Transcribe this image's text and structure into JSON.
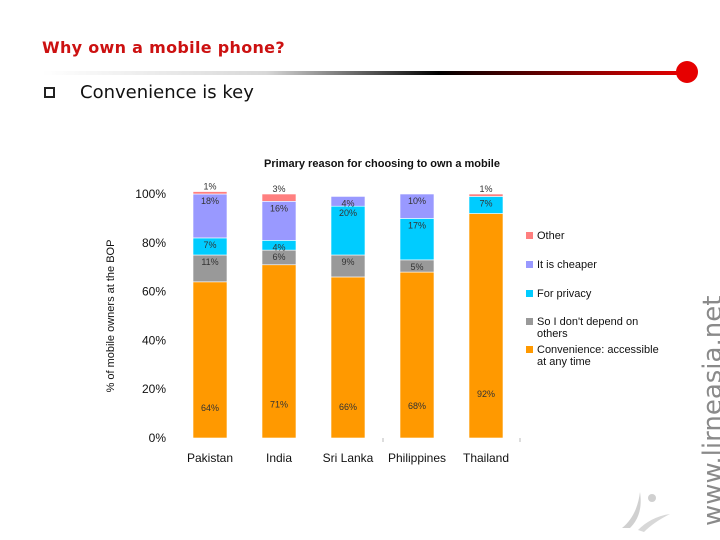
{
  "slide": {
    "title": "Why own a mobile phone?",
    "bullet": "Convenience is key",
    "watermark": "www.lirneasia.net"
  },
  "chart_data": {
    "type": "bar",
    "stacked": true,
    "title": "Primary reason for choosing to own a mobile",
    "ylabel": "% of mobile owners at the BOP",
    "xlabel": "",
    "ylim": [
      0,
      100
    ],
    "yticks": [
      "0%",
      "20%",
      "40%",
      "60%",
      "80%",
      "100%"
    ],
    "categories": [
      "Pakistan",
      "India",
      "Sri Lanka",
      "Philippines",
      "Thailand"
    ],
    "series": [
      {
        "name": "Convenience: accessible at any time",
        "color": "#ff9900",
        "values": [
          64,
          71,
          66,
          68,
          92
        ],
        "labels": [
          "64%",
          "71%",
          "66%",
          "68%",
          "92%"
        ]
      },
      {
        "name": "So I don't depend on others",
        "color": "#999999",
        "values": [
          11,
          6,
          9,
          5,
          0
        ],
        "labels": [
          "11%",
          "6%",
          "9%",
          "5%",
          ""
        ]
      },
      {
        "name": "For privacy",
        "color": "#00ccff",
        "values": [
          7,
          4,
          20,
          17,
          7
        ],
        "labels": [
          "7%",
          "4%",
          "20%",
          "17%",
          "7%"
        ]
      },
      {
        "name": "It is cheaper",
        "color": "#9999ff",
        "values": [
          18,
          16,
          4,
          10,
          0
        ],
        "labels": [
          "18%",
          "16%",
          "4%",
          "10%",
          ""
        ]
      },
      {
        "name": "Other",
        "color": "#ff7f7f",
        "values": [
          1,
          3,
          0,
          0,
          1
        ],
        "labels": [
          "1%",
          "3%",
          "",
          "",
          "1%"
        ]
      }
    ],
    "legend_position": "right",
    "legend_order": [
      "Other",
      "It is cheaper",
      "For privacy",
      "So I don't depend on others",
      "Convenience: accessible at any time"
    ],
    "grid": false
  }
}
